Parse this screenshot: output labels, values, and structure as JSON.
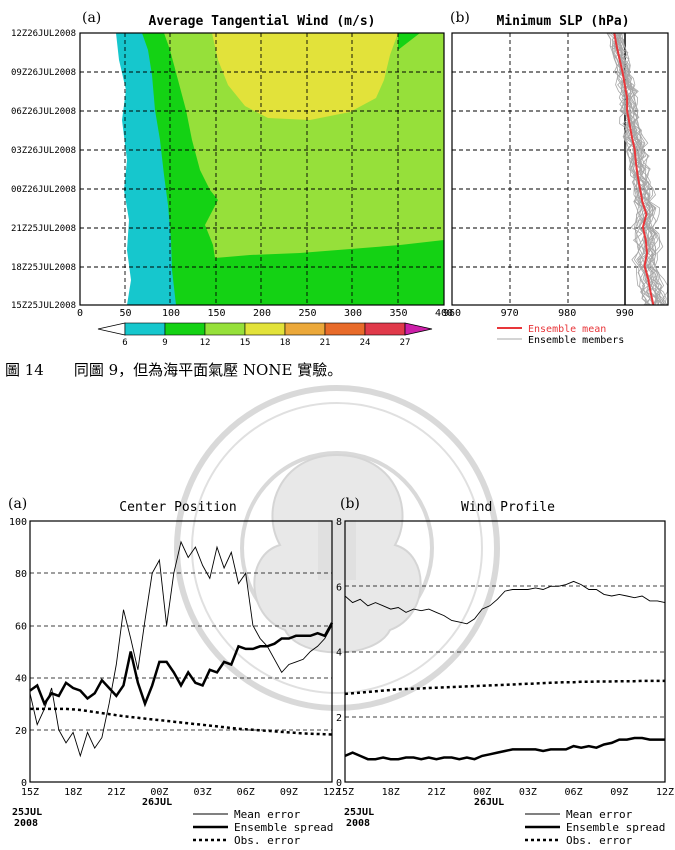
{
  "caption": "圖 14　　同圖 9，但為海平面氣壓 NONE 實驗。",
  "top_panels": {
    "a": {
      "panel_label": "(a)",
      "title": "Average Tangential Wind (m/s)",
      "y_labels": [
        "12Z26JUL2008",
        "09Z26JUL2008",
        "06Z26JUL2008",
        "03Z26JUL2008",
        "00Z26JUL2008",
        "21Z25JUL2008",
        "18Z25JUL2008",
        "15Z25JUL2008"
      ],
      "x_labels": [
        "0",
        "50",
        "100",
        "150",
        "200",
        "250",
        "300",
        "350",
        "400"
      ],
      "colorbar_labels": [
        "6",
        "9",
        "12",
        "15",
        "18",
        "21",
        "24",
        "27"
      ],
      "colors": {
        "c6_9": "#16c7cd",
        "c9_12": "#14d214",
        "c12_15": "#96e03a",
        "c15_18": "#e2e23a",
        "c18_21": "#eba83a",
        "c21_24": "#e86b2a",
        "c24_27": "#e03a4a",
        "c27": "#cc1fa8"
      }
    },
    "b": {
      "panel_label": "(b)",
      "title": "Minimum SLP (hPa)",
      "x_labels": [
        "960",
        "970",
        "980",
        "990"
      ],
      "legend": [
        "Ensemble mean",
        "Ensemble members"
      ],
      "colors": {
        "mean": "#e8363a",
        "member": "#a8a8a8"
      }
    }
  },
  "bottom_panels": {
    "a": {
      "panel_label": "(a)",
      "title": "Center Position",
      "y_labels": [
        "0",
        "20",
        "40",
        "60",
        "80",
        "100"
      ],
      "x_labels": [
        "15Z",
        "18Z",
        "21Z",
        "00Z",
        "03Z",
        "06Z",
        "09Z",
        "12Z"
      ],
      "x_sublabels": {
        "a": "25JUL",
        "b": "2008",
        "c": "26JUL"
      },
      "legend": [
        "Mean error",
        "Ensemble spread",
        "Obs. error"
      ]
    },
    "b": {
      "panel_label": "(b)",
      "title": "Wind Profile",
      "y_labels": [
        "0",
        "2",
        "4",
        "6",
        "8"
      ],
      "x_labels": [
        "15Z",
        "18Z",
        "21Z",
        "00Z",
        "03Z",
        "06Z",
        "09Z",
        "12Z"
      ],
      "x_sublabels": {
        "a": "25JUL",
        "b": "2008",
        "c": "26JUL"
      },
      "legend": [
        "Mean error",
        "Ensemble spread",
        "Obs. error"
      ]
    }
  },
  "chart_data": [
    {
      "type": "heatmap",
      "title": "Average Tangential Wind (m/s)",
      "x_ticks": [
        0,
        50,
        100,
        150,
        200,
        250,
        300,
        350,
        400
      ],
      "y_ticks": [
        "15Z25JUL2008",
        "18Z25JUL2008",
        "21Z25JUL2008",
        "00Z26JUL2008",
        "03Z26JUL2008",
        "06Z26JUL2008",
        "09Z26JUL2008",
        "12Z26JUL2008"
      ],
      "xlim": [
        0,
        400
      ],
      "levels": [
        6,
        9,
        12,
        15,
        18,
        21,
        24,
        27
      ]
    },
    {
      "type": "line",
      "title": "Minimum SLP (hPa)",
      "xlim": [
        960,
        997
      ],
      "series": [
        {
          "name": "Ensemble mean",
          "y_hours": [
            0,
            1,
            2,
            3,
            4,
            5,
            6,
            7,
            8,
            9,
            10,
            11,
            12,
            13,
            14,
            15,
            16,
            17,
            18,
            19,
            20,
            21
          ],
          "values": [
            994.5,
            994,
            993.6,
            993,
            993.4,
            993.2,
            992.7,
            993.3,
            992.6,
            992.2,
            991.8,
            991.5,
            991.3,
            990.8,
            990.4,
            990,
            990,
            989.6,
            989.2,
            988.7,
            988.2,
            987.8
          ]
        }
      ]
    },
    {
      "type": "line",
      "title": "Center Position",
      "ylim": [
        0,
        100
      ],
      "x_hours": [
        0,
        0.5,
        1,
        1.5,
        2,
        2.5,
        3,
        3.5,
        4,
        4.5,
        5,
        5.5,
        6,
        6.5,
        7,
        7.5,
        8,
        8.5,
        9,
        9.5,
        10,
        10.5,
        11,
        11.5,
        12,
        12.5,
        13,
        13.5,
        14,
        14.5,
        15,
        15.5,
        16,
        16.5,
        17,
        17.5,
        18,
        18.5,
        19,
        19.5,
        20,
        20.5,
        21
      ],
      "series": [
        {
          "name": "Mean error",
          "values": [
            34,
            22,
            28,
            36,
            20,
            15,
            19,
            10,
            19,
            13,
            17,
            30,
            45,
            66,
            55,
            43,
            62,
            80,
            85,
            60,
            80,
            92,
            86,
            90,
            83,
            78,
            90,
            82,
            88,
            76,
            80,
            60,
            55,
            52,
            47,
            42,
            45,
            46,
            47,
            50,
            52,
            55,
            60
          ]
        },
        {
          "name": "Ensemble spread",
          "values": [
            35,
            37,
            30,
            34,
            33,
            38,
            36,
            35,
            32,
            34,
            39,
            36,
            33,
            37,
            50,
            38,
            30,
            37,
            46,
            46,
            42,
            37,
            42,
            38,
            37,
            43,
            42,
            46,
            45,
            52,
            51,
            51,
            52,
            52,
            53,
            55,
            55,
            56,
            56,
            56,
            57,
            56,
            61
          ]
        },
        {
          "name": "Obs. error",
          "values": [
            28,
            28,
            28,
            28,
            28,
            28,
            27.8,
            27.6,
            27.2,
            26.8,
            26.4,
            26,
            25.6,
            25.2,
            24.9,
            24.6,
            24.3,
            24,
            23.7,
            23.4,
            23.1,
            22.8,
            22.5,
            22.2,
            21.9,
            21.6,
            21.3,
            21,
            20.7,
            20.4,
            20.2,
            20,
            19.8,
            19.6,
            19.4,
            19.2,
            19,
            18.8,
            18.6,
            18.5,
            18.4,
            18.3,
            18.2
          ]
        }
      ]
    },
    {
      "type": "line",
      "title": "Wind Profile",
      "ylim": [
        0,
        8
      ],
      "x_hours": [
        0,
        0.5,
        1,
        1.5,
        2,
        2.5,
        3,
        3.5,
        4,
        4.5,
        5,
        5.5,
        6,
        6.5,
        7,
        7.5,
        8,
        8.5,
        9,
        9.5,
        10,
        10.5,
        11,
        11.5,
        12,
        12.5,
        13,
        13.5,
        14,
        14.5,
        15,
        15.5,
        16,
        16.5,
        17,
        17.5,
        18,
        18.5,
        19,
        19.5,
        20,
        20.5,
        21
      ],
      "series": [
        {
          "name": "Mean error",
          "values": [
            5.7,
            5.5,
            5.6,
            5.4,
            5.5,
            5.4,
            5.3,
            5.35,
            5.2,
            5.3,
            5.25,
            5.3,
            5.2,
            5.1,
            4.95,
            4.9,
            4.85,
            5.0,
            5.3,
            5.4,
            5.6,
            5.85,
            5.9,
            5.9,
            5.9,
            5.95,
            5.9,
            6.0,
            6.0,
            6.05,
            6.15,
            6.05,
            5.9,
            5.9,
            5.75,
            5.7,
            5.75,
            5.7,
            5.65,
            5.7,
            5.55,
            5.55,
            5.5
          ]
        },
        {
          "name": "Ensemble spread",
          "values": [
            0.8,
            0.9,
            0.8,
            0.7,
            0.7,
            0.75,
            0.7,
            0.7,
            0.75,
            0.75,
            0.7,
            0.75,
            0.7,
            0.75,
            0.75,
            0.7,
            0.75,
            0.7,
            0.8,
            0.85,
            0.9,
            0.95,
            1.0,
            1.0,
            1.0,
            1.0,
            0.95,
            1.0,
            1.0,
            1.0,
            1.1,
            1.05,
            1.1,
            1.05,
            1.15,
            1.2,
            1.3,
            1.3,
            1.35,
            1.35,
            1.3,
            1.3,
            1.3
          ]
        },
        {
          "name": "Obs. error",
          "values": [
            2.7,
            2.72,
            2.74,
            2.76,
            2.78,
            2.8,
            2.82,
            2.84,
            2.85,
            2.86,
            2.87,
            2.88,
            2.89,
            2.9,
            2.91,
            2.92,
            2.93,
            2.94,
            2.95,
            2.96,
            2.97,
            2.98,
            2.99,
            3.0,
            3.01,
            3.02,
            3.03,
            3.04,
            3.05,
            3.06,
            3.06,
            3.07,
            3.07,
            3.08,
            3.08,
            3.08,
            3.09,
            3.09,
            3.09,
            3.1,
            3.1,
            3.1,
            3.1
          ]
        }
      ]
    }
  ]
}
